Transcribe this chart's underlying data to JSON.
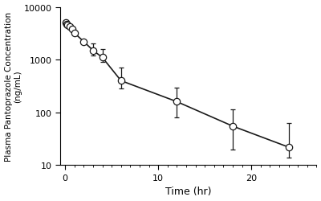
{
  "x": [
    0.083,
    0.167,
    0.25,
    0.5,
    0.75,
    1.0,
    2.0,
    3.0,
    4.0,
    6.0,
    12.0,
    18.0,
    24.0
  ],
  "y": [
    5000,
    4700,
    4500,
    4200,
    3800,
    3200,
    2200,
    1500,
    1100,
    400,
    160,
    55,
    22
  ],
  "yerr_low": [
    0,
    0,
    0,
    0,
    0,
    0,
    0,
    300,
    200,
    120,
    80,
    35,
    8
  ],
  "yerr_high": [
    0,
    0,
    0,
    0,
    0,
    0,
    0,
    500,
    500,
    300,
    130,
    60,
    40
  ],
  "xlabel": "Time (hr)",
  "ylabel": "Plasma Pantoprazole Concentration\n(ng/mL)",
  "ylim_log": [
    10,
    10000
  ],
  "xlim": [
    -0.5,
    27
  ],
  "xticks_major": [
    0,
    10,
    20
  ],
  "xticks_minor_step": 1,
  "line_color": "#1a1a1a",
  "marker_color": "#ffffff",
  "marker_edge_color": "#1a1a1a",
  "background_color": "#ffffff",
  "marker_size": 6,
  "linewidth": 1.2,
  "capsize": 2.5,
  "elinewidth": 0.9,
  "xlabel_fontsize": 9,
  "ylabel_fontsize": 7.5,
  "tick_fontsize": 8
}
